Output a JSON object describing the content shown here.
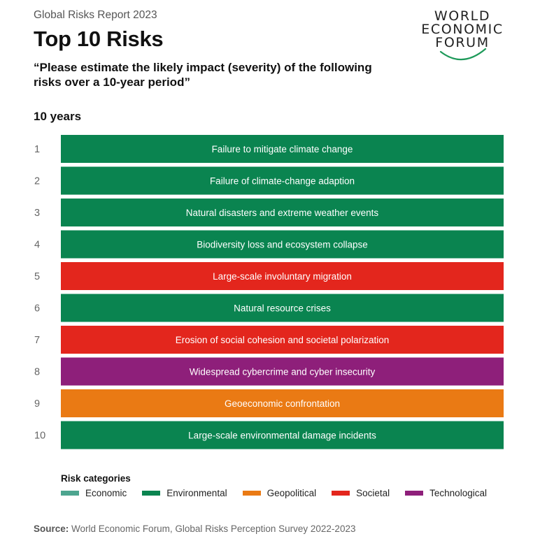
{
  "header": {
    "report": "Global Risks Report 2023",
    "title": "Top 10 Risks",
    "question": "“Please estimate the likely impact (severity) of the following risks over a 10-year period”",
    "period": "10 years"
  },
  "logo": {
    "line1": "WORLD",
    "line2": "ECONOMIC",
    "line3": "FORUM"
  },
  "colors": {
    "Economic": "#4da58f",
    "Environmental": "#0a8450",
    "Geopolitical": "#ea7a14",
    "Societal": "#e3261d",
    "Technological": "#8e1f7a",
    "arc": "#1e9a5a"
  },
  "chart_data": {
    "type": "table",
    "title": "10 years",
    "rows": [
      {
        "rank": "1",
        "label": "Failure to mitigate climate change",
        "category": "Environmental"
      },
      {
        "rank": "2",
        "label": "Failure of climate-change adaption",
        "category": "Environmental"
      },
      {
        "rank": "3",
        "label": "Natural disasters and extreme weather events",
        "category": "Environmental"
      },
      {
        "rank": "4",
        "label": "Biodiversity loss and ecosystem collapse",
        "category": "Environmental"
      },
      {
        "rank": "5",
        "label": "Large-scale involuntary migration",
        "category": "Societal"
      },
      {
        "rank": "6",
        "label": "Natural resource crises",
        "category": "Environmental"
      },
      {
        "rank": "7",
        "label": "Erosion of social cohesion and societal polarization",
        "category": "Societal"
      },
      {
        "rank": "8",
        "label": "Widespread cybercrime and cyber insecurity",
        "category": "Technological"
      },
      {
        "rank": "9",
        "label": "Geoeconomic confrontation",
        "category": "Geopolitical"
      },
      {
        "rank": "10",
        "label": "Large-scale environmental damage incidents",
        "category": "Environmental"
      }
    ]
  },
  "legend": {
    "title": "Risk categories",
    "items": [
      "Economic",
      "Environmental",
      "Geopolitical",
      "Societal",
      "Technological"
    ]
  },
  "source": {
    "label": "Source:",
    "text": "World Economic Forum, Global Risks Perception Survey 2022-2023"
  }
}
